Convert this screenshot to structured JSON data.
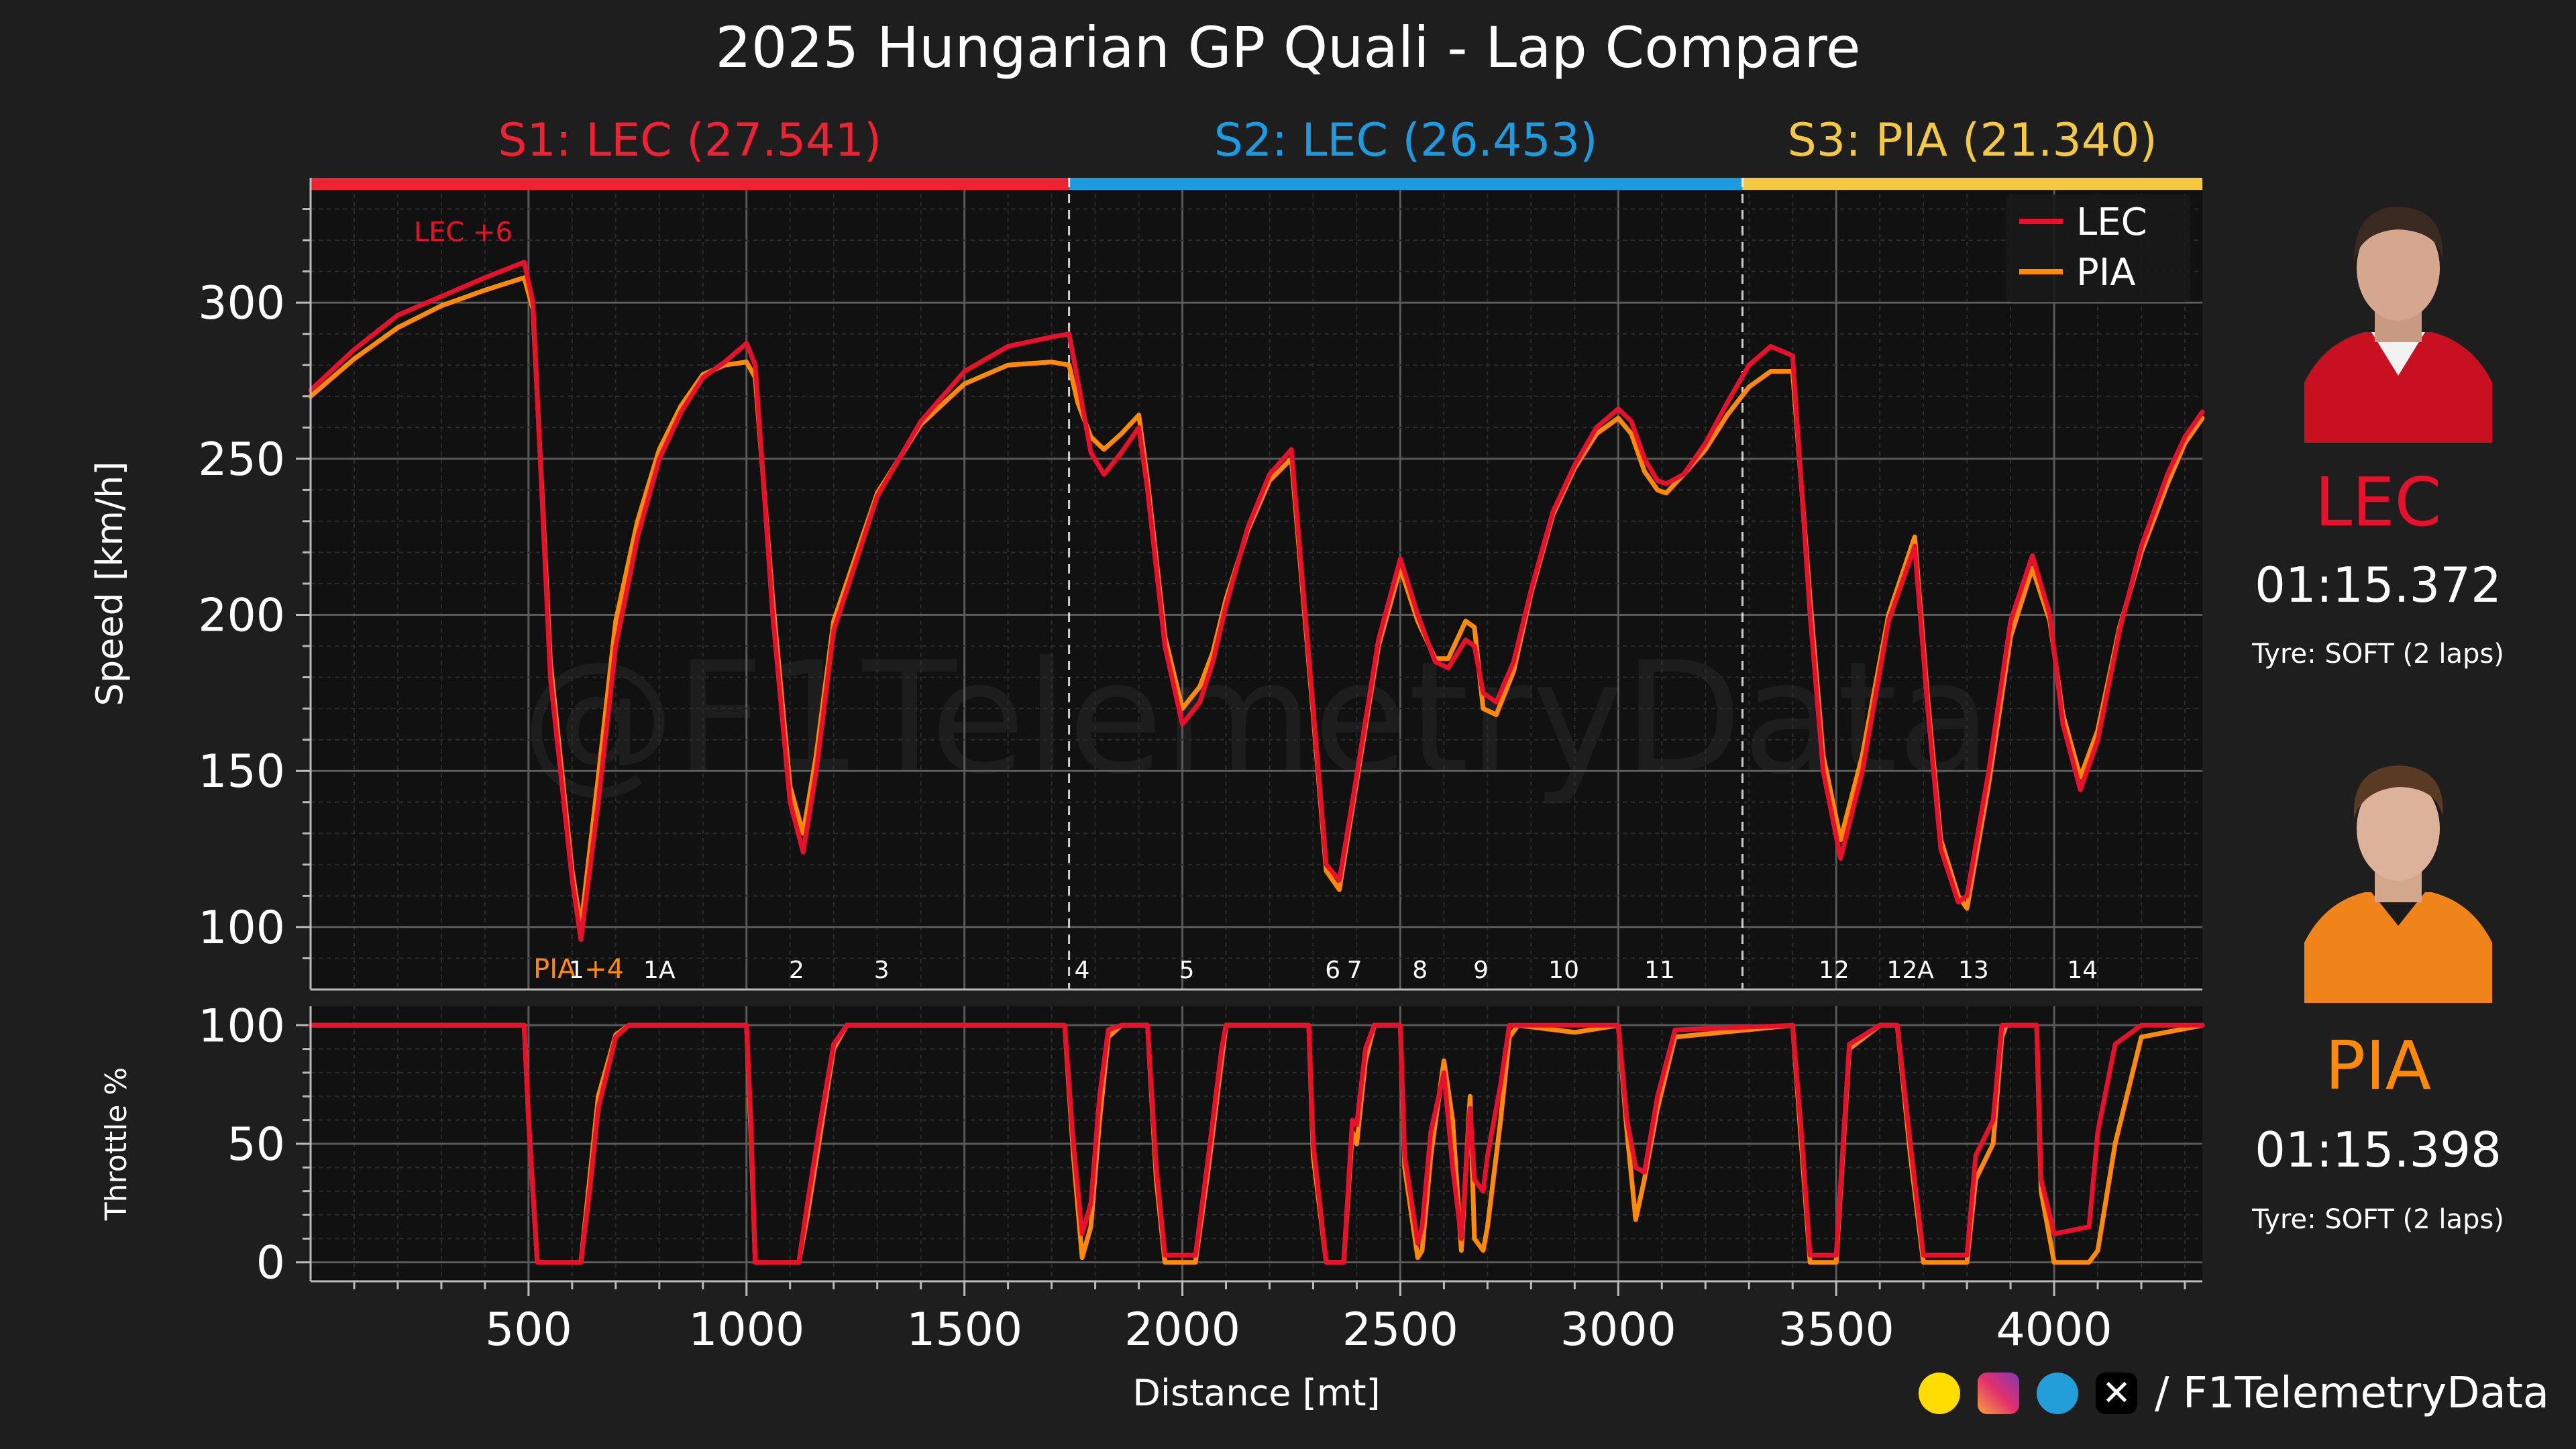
{
  "title": "2025 Hungarian GP Quali - Lap Compare",
  "watermark": "@F1TelemetryData",
  "colors": {
    "LEC": "#e8102a",
    "PIA": "#ff8a0a",
    "S1": "#ee2233",
    "S2": "#1d9be0",
    "S3": "#f5c842",
    "bg": "#1e1e1e",
    "plot_bg": "#111111"
  },
  "sectors": [
    {
      "label": "S1: LEC (27.541)",
      "start": 0,
      "end": 1740
    },
    {
      "label": "S2: LEC (26.453)",
      "start": 1740,
      "end": 3285
    },
    {
      "label": "S3: PIA (21.340)",
      "start": 3285,
      "end": 4340
    }
  ],
  "annotations": [
    {
      "text": "LEC +6",
      "x": 350,
      "y": 318,
      "driver": "LEC"
    },
    {
      "text": "PIA +4",
      "x": 615,
      "y": 88,
      "driver": "PIA"
    }
  ],
  "corners": [
    {
      "label": "1",
      "x": 610
    },
    {
      "label": "1A",
      "x": 800
    },
    {
      "label": "2",
      "x": 1115
    },
    {
      "label": "3",
      "x": 1310
    },
    {
      "label": "4",
      "x": 1770
    },
    {
      "label": "5",
      "x": 2010
    },
    {
      "label": "6",
      "x": 2345
    },
    {
      "label": "7",
      "x": 2395
    },
    {
      "label": "8",
      "x": 2545
    },
    {
      "label": "9",
      "x": 2685
    },
    {
      "label": "10",
      "x": 2875
    },
    {
      "label": "11",
      "x": 3095
    },
    {
      "label": "12",
      "x": 3495
    },
    {
      "label": "12A",
      "x": 3670
    },
    {
      "label": "13",
      "x": 3815
    },
    {
      "label": "14",
      "x": 4065
    }
  ],
  "drivers": [
    {
      "code": "LEC",
      "time": "01:15.372",
      "tyre": "Tyre: SOFT (2 laps)",
      "photo": "driver-photo-lec"
    },
    {
      "code": "PIA",
      "time": "01:15.398",
      "tyre": "Tyre: SOFT (2 laps)",
      "photo": "driver-photo-pia"
    }
  ],
  "footer": {
    "handle": "/ F1TelemetryData",
    "icons": [
      "buymeacoffee-icon",
      "instagram-icon",
      "telegram-icon",
      "x-icon"
    ]
  },
  "chart_data": [
    {
      "type": "line",
      "ylabel": "Speed [km/h]",
      "xlim": [
        0,
        4340
      ],
      "ylim": [
        80,
        340
      ],
      "yticks": [
        100,
        150,
        200,
        250,
        300
      ],
      "grid": true,
      "legend": "top-right",
      "series": [
        {
          "name": "LEC",
          "x": [
            0,
            100,
            200,
            300,
            400,
            490,
            510,
            550,
            600,
            620,
            660,
            700,
            750,
            800,
            850,
            900,
            950,
            1000,
            1020,
            1060,
            1100,
            1130,
            1160,
            1200,
            1300,
            1400,
            1500,
            1600,
            1700,
            1740,
            1760,
            1790,
            1820,
            1860,
            1900,
            1920,
            1960,
            2000,
            2040,
            2070,
            2100,
            2150,
            2200,
            2250,
            2300,
            2330,
            2360,
            2390,
            2450,
            2500,
            2540,
            2580,
            2610,
            2650,
            2670,
            2690,
            2720,
            2760,
            2800,
            2850,
            2900,
            2950,
            3000,
            3030,
            3060,
            3090,
            3110,
            3150,
            3200,
            3250,
            3300,
            3350,
            3400,
            3440,
            3470,
            3510,
            3560,
            3620,
            3680,
            3710,
            3740,
            3780,
            3800,
            3850,
            3900,
            3950,
            3990,
            4020,
            4060,
            4100,
            4150,
            4200,
            4260,
            4300,
            4340
          ],
          "y": [
            272,
            285,
            296,
            302,
            308,
            313,
            300,
            180,
            115,
            96,
            140,
            190,
            225,
            250,
            265,
            276,
            281,
            287,
            280,
            200,
            140,
            124,
            150,
            195,
            238,
            262,
            278,
            286,
            289,
            290,
            275,
            252,
            245,
            252,
            260,
            240,
            190,
            165,
            172,
            185,
            203,
            228,
            245,
            253,
            170,
            120,
            115,
            140,
            192,
            218,
            200,
            185,
            183,
            192,
            190,
            175,
            172,
            185,
            208,
            233,
            248,
            260,
            266,
            262,
            250,
            243,
            242,
            245,
            255,
            268,
            280,
            286,
            283,
            200,
            150,
            122,
            150,
            198,
            222,
            170,
            125,
            108,
            110,
            150,
            198,
            219,
            200,
            165,
            144,
            160,
            195,
            222,
            245,
            257,
            265
          ]
        },
        {
          "name": "PIA",
          "x": [
            0,
            100,
            200,
            300,
            400,
            490,
            510,
            550,
            600,
            620,
            660,
            700,
            750,
            800,
            850,
            900,
            950,
            1000,
            1020,
            1060,
            1100,
            1130,
            1160,
            1200,
            1300,
            1400,
            1500,
            1600,
            1700,
            1740,
            1760,
            1790,
            1820,
            1860,
            1900,
            1920,
            1960,
            2000,
            2040,
            2070,
            2100,
            2150,
            2200,
            2250,
            2300,
            2330,
            2360,
            2390,
            2450,
            2500,
            2540,
            2580,
            2610,
            2650,
            2670,
            2690,
            2720,
            2760,
            2800,
            2850,
            2900,
            2950,
            3000,
            3030,
            3060,
            3090,
            3110,
            3150,
            3200,
            3250,
            3300,
            3350,
            3400,
            3440,
            3470,
            3510,
            3560,
            3620,
            3680,
            3710,
            3740,
            3780,
            3800,
            3850,
            3900,
            3950,
            3990,
            4020,
            4060,
            4100,
            4150,
            4200,
            4260,
            4300,
            4340
          ],
          "y": [
            270,
            282,
            292,
            299,
            304,
            308,
            298,
            185,
            118,
            100,
            148,
            198,
            230,
            253,
            267,
            277,
            280,
            281,
            276,
            205,
            145,
            130,
            155,
            198,
            239,
            261,
            274,
            280,
            281,
            280,
            268,
            257,
            253,
            258,
            264,
            243,
            193,
            170,
            177,
            188,
            205,
            227,
            243,
            250,
            168,
            118,
            112,
            138,
            190,
            215,
            198,
            186,
            186,
            198,
            196,
            170,
            168,
            182,
            207,
            232,
            247,
            258,
            263,
            258,
            246,
            240,
            239,
            245,
            253,
            264,
            273,
            278,
            278,
            205,
            155,
            128,
            155,
            200,
            225,
            173,
            128,
            110,
            106,
            146,
            193,
            215,
            198,
            168,
            148,
            163,
            196,
            220,
            242,
            255,
            263
          ]
        }
      ]
    },
    {
      "type": "line",
      "ylabel": "Throttle %",
      "xlabel": "Distance [mt]",
      "xlim": [
        0,
        4340
      ],
      "ylim": [
        -8,
        108
      ],
      "yticks": [
        0,
        50,
        100
      ],
      "xticks": [
        500,
        1000,
        1500,
        2000,
        2500,
        3000,
        3500,
        4000
      ],
      "grid": true,
      "series": [
        {
          "name": "LEC",
          "x": [
            0,
            490,
            500,
            520,
            620,
            640,
            660,
            700,
            730,
            1000,
            1010,
            1020,
            1120,
            1140,
            1170,
            1200,
            1230,
            1730,
            1750,
            1770,
            1790,
            1810,
            1830,
            1860,
            1920,
            1940,
            1960,
            1980,
            2030,
            2060,
            2090,
            2100,
            2290,
            2300,
            2330,
            2340,
            2370,
            2390,
            2400,
            2420,
            2440,
            2500,
            2510,
            2540,
            2550,
            2570,
            2600,
            2620,
            2640,
            2660,
            2670,
            2690,
            2700,
            2730,
            2750,
            2770,
            2900,
            3000,
            3020,
            3040,
            3060,
            3090,
            3130,
            3400,
            3420,
            3440,
            3500,
            3530,
            3600,
            3640,
            3670,
            3700,
            3720,
            3750,
            3800,
            3820,
            3860,
            3880,
            3890,
            3960,
            3970,
            4000,
            4080,
            4100,
            4140,
            4200,
            4340
          ],
          "y": [
            100,
            100,
            60,
            0,
            0,
            30,
            65,
            95,
            100,
            100,
            60,
            0,
            0,
            25,
            60,
            92,
            100,
            100,
            50,
            12,
            25,
            70,
            98,
            100,
            100,
            40,
            3,
            3,
            3,
            45,
            90,
            100,
            100,
            50,
            0,
            0,
            0,
            60,
            58,
            90,
            100,
            100,
            45,
            8,
            15,
            55,
            80,
            40,
            10,
            65,
            35,
            30,
            45,
            75,
            100,
            100,
            100,
            100,
            60,
            40,
            38,
            70,
            98,
            100,
            55,
            3,
            3,
            92,
            100,
            100,
            50,
            3,
            3,
            3,
            3,
            45,
            60,
            100,
            100,
            100,
            35,
            12,
            15,
            55,
            92,
            100,
            100
          ]
        },
        {
          "name": "PIA",
          "x": [
            0,
            490,
            500,
            520,
            620,
            640,
            660,
            700,
            730,
            1000,
            1010,
            1020,
            1120,
            1140,
            1170,
            1200,
            1230,
            1730,
            1750,
            1770,
            1790,
            1810,
            1830,
            1860,
            1920,
            1940,
            1960,
            1980,
            2030,
            2060,
            2090,
            2100,
            2290,
            2300,
            2330,
            2340,
            2370,
            2390,
            2400,
            2420,
            2440,
            2500,
            2510,
            2540,
            2550,
            2570,
            2600,
            2620,
            2640,
            2660,
            2670,
            2690,
            2700,
            2730,
            2750,
            2770,
            2900,
            3000,
            3020,
            3040,
            3060,
            3090,
            3130,
            3400,
            3420,
            3440,
            3500,
            3530,
            3600,
            3640,
            3670,
            3700,
            3720,
            3750,
            3800,
            3820,
            3860,
            3880,
            3890,
            3960,
            3970,
            4000,
            4080,
            4100,
            4140,
            4200,
            4340
          ],
          "y": [
            100,
            100,
            60,
            0,
            0,
            35,
            70,
            96,
            100,
            100,
            55,
            0,
            0,
            20,
            55,
            90,
            100,
            100,
            45,
            2,
            15,
            60,
            95,
            100,
            100,
            35,
            0,
            0,
            0,
            40,
            85,
            100,
            100,
            45,
            0,
            0,
            0,
            55,
            50,
            85,
            100,
            100,
            40,
            2,
            5,
            45,
            85,
            60,
            5,
            70,
            10,
            5,
            15,
            60,
            95,
            100,
            97,
            100,
            55,
            18,
            35,
            65,
            95,
            100,
            50,
            0,
            0,
            90,
            100,
            100,
            45,
            0,
            0,
            0,
            0,
            35,
            50,
            95,
            100,
            100,
            30,
            0,
            0,
            5,
            50,
            95,
            100
          ]
        }
      ]
    }
  ]
}
